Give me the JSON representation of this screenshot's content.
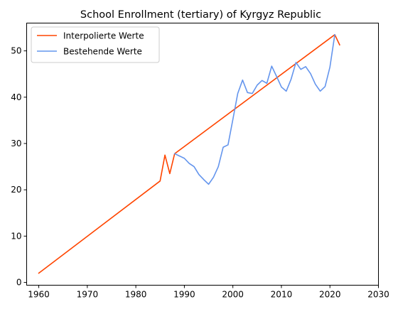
{
  "chart_data": {
    "type": "line",
    "title": "School Enrollment (tertiary) of Kyrgyz Republic",
    "xlabel": "",
    "ylabel": "",
    "xlim": [
      1957.5,
      2030
    ],
    "ylim": [
      -0.6,
      56
    ],
    "xticks": [
      1960,
      1970,
      1980,
      1990,
      2000,
      2010,
      2020,
      2030
    ],
    "yticks": [
      0,
      10,
      20,
      30,
      40,
      50
    ],
    "legend_position": "top-left",
    "series": [
      {
        "name": "Interpolierte Werte",
        "color": "#ff4500",
        "x": [
          1960,
          1985,
          1986,
          1987,
          1988,
          2021,
          2022
        ],
        "y": [
          2.0,
          21.9,
          27.5,
          23.5,
          27.8,
          53.5,
          51.3
        ]
      },
      {
        "name": "Bestehende Werte",
        "color": "#6495ed",
        "x": [
          1988,
          1989,
          1990,
          1991,
          1992,
          1993,
          1994,
          1995,
          1996,
          1997,
          1998,
          1999,
          2000,
          2001,
          2002,
          2003,
          2004,
          2005,
          2006,
          2007,
          2008,
          2009,
          2010,
          2011,
          2012,
          2013,
          2014,
          2015,
          2016,
          2017,
          2018,
          2019,
          2020,
          2021
        ],
        "y": [
          27.8,
          27.3,
          26.8,
          25.7,
          25.0,
          23.3,
          22.2,
          21.2,
          22.7,
          25.0,
          29.2,
          29.7,
          35.2,
          40.8,
          43.7,
          41.0,
          40.8,
          42.6,
          43.6,
          43.0,
          46.7,
          44.5,
          42.2,
          41.3,
          43.9,
          47.5,
          46.0,
          46.6,
          45.1,
          42.8,
          41.3,
          42.3,
          46.5,
          53.5
        ]
      }
    ]
  }
}
